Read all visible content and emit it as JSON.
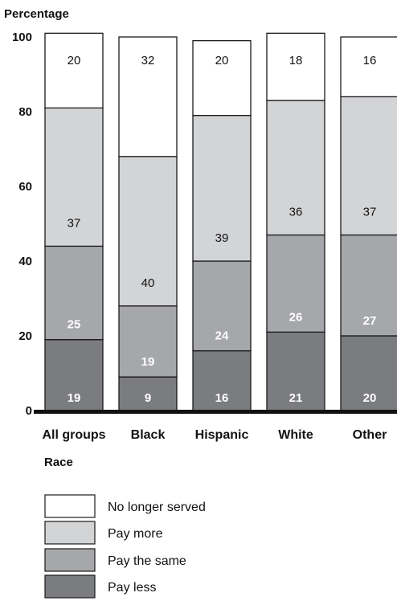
{
  "chart_data": {
    "type": "bar",
    "stacked": true,
    "ylabel": "Percentage",
    "xlabel": "Race",
    "ylim": [
      0,
      100
    ],
    "yticks": [
      0,
      20,
      40,
      60,
      80,
      100
    ],
    "categories": [
      "All groups",
      "Black",
      "Hispanic",
      "White",
      "Other"
    ],
    "series": [
      {
        "name": "Pay less",
        "color": "#7b7c80",
        "label_style": "light",
        "values": [
          19,
          9,
          16,
          21,
          20
        ]
      },
      {
        "name": "Pay the same",
        "color": "#a6a7ab",
        "label_style": "light",
        "values": [
          25,
          19,
          24,
          26,
          27
        ]
      },
      {
        "name": "Pay more",
        "color": "#d3d4d6",
        "label_style": "dark",
        "values": [
          37,
          40,
          39,
          36,
          37
        ]
      },
      {
        "name": "No longer served",
        "color": "#ffffff",
        "label_style": "dark",
        "values": [
          20,
          32,
          20,
          18,
          16
        ]
      }
    ],
    "legend": {
      "position": "bottom",
      "order": [
        "No longer served",
        "Pay more",
        "Pay the same",
        "Pay less"
      ]
    },
    "grid": false
  }
}
